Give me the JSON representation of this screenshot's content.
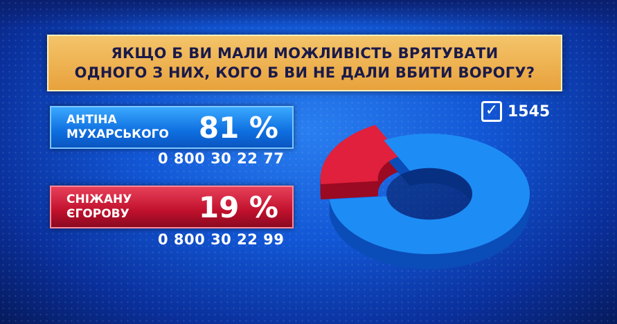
{
  "question": {
    "line1": "ЯКЩО Б ВИ МАЛИ МОЖЛИВІСТЬ ВРЯТУВАТИ",
    "line2": "ОДНОГО З НИХ, КОГО Б ВИ НЕ ДАЛИ ВБИТИ ВОРОГУ?"
  },
  "options": [
    {
      "line1": "АНТІНА",
      "line2": "МУХАРСЬКОГО",
      "percent": "81 %",
      "phone": "0 800 30 22 77",
      "color": "#1e8cf5"
    },
    {
      "line1": "СНІЖАНУ",
      "line2": "ЄГОРОВУ",
      "percent": "19 %",
      "phone": "0 800 30 22 99",
      "color": "#e0203c"
    }
  ],
  "votes": {
    "icon": "checkbox-check-icon",
    "count": "1545"
  },
  "chart_data": {
    "type": "pie",
    "style": "3d-donut",
    "categories": [
      "АНТІНА МУХАРСЬКОГО",
      "СНІЖАНУ ЄГОРОВУ"
    ],
    "values": [
      81,
      19
    ],
    "colors": [
      "#1e8cf5",
      "#e0203c"
    ]
  }
}
